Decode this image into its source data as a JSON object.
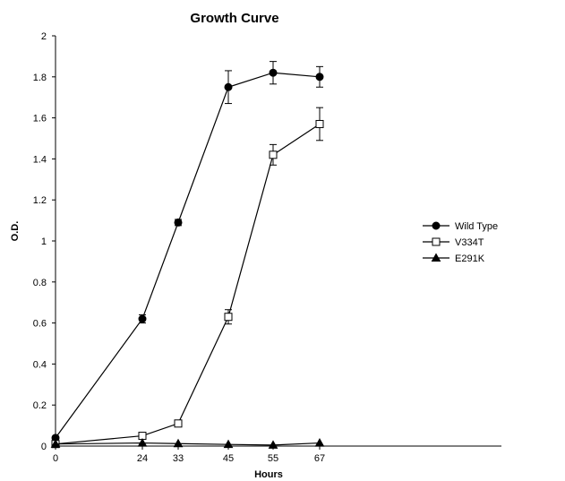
{
  "chart_data": {
    "type": "line",
    "title": "Growth Curve",
    "xlabel": "Hours",
    "ylabel": "O.D.",
    "categories": [
      "0",
      "24",
      "33",
      "45",
      "55",
      "67"
    ],
    "ylim": [
      0,
      2
    ],
    "yticks": [
      "0",
      "0.2",
      "0.4",
      "0.6",
      "0.8",
      "1",
      "1.2",
      "1.4",
      "1.6",
      "1.8",
      "2"
    ],
    "grid": false,
    "legend_position": "right",
    "series": [
      {
        "name": "Wild Type",
        "marker": "filled-circle",
        "color": "#000000",
        "values": [
          0.04,
          0.62,
          1.09,
          1.75,
          1.82,
          1.8
        ],
        "errors": [
          0.0,
          0.02,
          0.015,
          0.08,
          0.055,
          0.05
        ]
      },
      {
        "name": "V334T",
        "marker": "open-square",
        "color": "#000000",
        "values": [
          0.01,
          0.05,
          0.11,
          0.63,
          1.42,
          1.57
        ],
        "errors": [
          0.0,
          0.0,
          0.0,
          0.035,
          0.05,
          0.08
        ]
      },
      {
        "name": "E291K",
        "marker": "filled-triangle",
        "color": "#000000",
        "values": [
          0.01,
          0.015,
          0.012,
          0.008,
          0.005,
          0.015
        ],
        "errors": [
          0,
          0,
          0,
          0,
          0,
          0
        ]
      }
    ]
  }
}
